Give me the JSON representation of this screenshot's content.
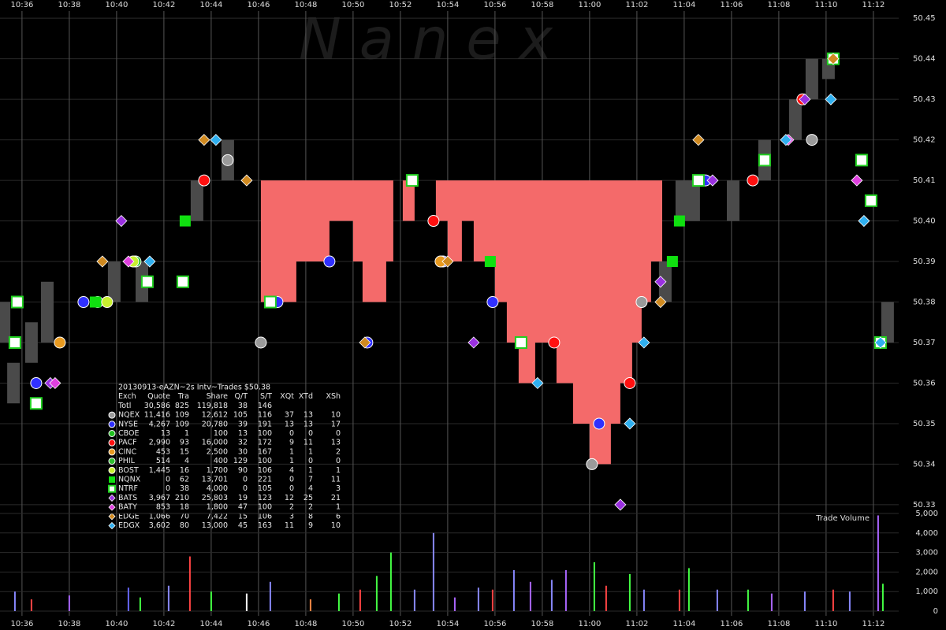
{
  "chart_data": [
    {
      "type": "scatter",
      "watermark": "N a n e x",
      "legend_table": {
        "title": "20130913-eAZN~2s Intv~Trades $50.38",
        "columns": [
          "Exch",
          "Quote",
          "Tra",
          "Share",
          "Q/T",
          "S/T",
          "XQt",
          "XTd",
          "XSh"
        ],
        "total": {
          "label": "Totl",
          "stats": [
            "30,586",
            "825",
            "119,818",
            "38",
            "146"
          ]
        }
      },
      "xlim": [
        635.07,
        673.07
      ],
      "xticks": [
        {
          "value": 636,
          "label": "10:36"
        },
        {
          "value": 638,
          "label": "10:38"
        },
        {
          "value": 640,
          "label": "10:40"
        },
        {
          "value": 642,
          "label": "10:42"
        },
        {
          "value": 644,
          "label": "10:44"
        },
        {
          "value": 646,
          "label": "10:46"
        },
        {
          "value": 648,
          "label": "10:48"
        },
        {
          "value": 650,
          "label": "10:50"
        },
        {
          "value": 652,
          "label": "10:52"
        },
        {
          "value": 654,
          "label": "10:54"
        },
        {
          "value": 656,
          "label": "10:56"
        },
        {
          "value": 658,
          "label": "10:58"
        },
        {
          "value": 660,
          "label": "11:00"
        },
        {
          "value": 662,
          "label": "11:02"
        },
        {
          "value": 664,
          "label": "11:04"
        },
        {
          "value": 666,
          "label": "11:06"
        },
        {
          "value": 668,
          "label": "11:08"
        },
        {
          "value": 670,
          "label": "11:10"
        },
        {
          "value": 672,
          "label": "11:12"
        }
      ],
      "ylim": [
        50.3294,
        50.4545
      ],
      "yticks": [
        50.33,
        50.34,
        50.35,
        50.36,
        50.37,
        50.38,
        50.39,
        {
          "value": 50.4,
          "label": "50.40"
        },
        50.41,
        50.42,
        50.43,
        50.44,
        50.45
      ],
      "grid": true,
      "spread": {
        "color": "#f46a6a",
        "base": 50.41,
        "x": [
          646.1,
          647.6,
          649.0,
          650.0,
          650.4,
          651.4,
          651.7,
          652.1,
          652.6,
          653.5,
          654.0,
          654.6,
          655.1,
          656.0,
          656.5,
          657.0,
          657.7,
          658.6,
          659.3,
          660.0,
          660.9,
          661.3,
          661.8,
          662.2,
          662.6,
          663.07
        ],
        "values": [
          50.38,
          50.39,
          50.4,
          50.39,
          50.38,
          50.39,
          50.41,
          50.4,
          50.41,
          50.4,
          50.39,
          50.4,
          50.39,
          50.38,
          50.37,
          50.36,
          50.37,
          50.36,
          50.35,
          50.34,
          50.35,
          50.36,
          50.37,
          50.38,
          50.39,
          50.41
        ]
      },
      "price_bars": {
        "color": "#4a4a4a",
        "x": [
          635.24,
          635.64,
          636.4,
          637.07,
          639.9,
          641.07,
          643.4,
          644.7,
          663.2,
          663.9,
          664.4,
          666.07,
          667.4,
          668.7,
          669.4,
          670.1,
          672.6
        ],
        "lows": [
          50.37,
          50.355,
          50.365,
          50.37,
          50.38,
          50.38,
          50.4,
          50.41,
          50.38,
          50.4,
          50.4,
          50.4,
          50.41,
          50.42,
          50.43,
          50.435,
          50.37
        ],
        "highs": [
          50.38,
          50.365,
          50.375,
          50.385,
          50.39,
          50.39,
          50.41,
          50.42,
          50.39,
          50.41,
          50.41,
          50.41,
          50.42,
          50.43,
          50.44,
          50.44,
          50.38
        ]
      },
      "series": [
        {
          "name": "NQEX",
          "color": "#9a9a9a",
          "shape": "circle",
          "stats": [
            "11,416",
            "109",
            "12,612",
            "105",
            "116",
            "37",
            "13",
            "10"
          ],
          "x": [
            644.7,
            662.2,
            646.1,
            669.4,
            660.1
          ],
          "values": [
            50.415,
            50.38,
            50.37,
            50.42,
            50.34
          ]
        },
        {
          "name": "NYSE",
          "color": "#3030ff",
          "shape": "circle",
          "stats": [
            "4,267",
            "109",
            "20,780",
            "39",
            "191",
            "13",
            "13",
            "17"
          ],
          "x": [
            636.6,
            638.6,
            646.8,
            649.0,
            655.9,
            660.4,
            650.6,
            653.8,
            664.9
          ],
          "values": [
            50.36,
            50.38,
            50.38,
            50.39,
            50.38,
            50.35,
            50.37,
            50.39,
            50.41
          ]
        },
        {
          "name": "CBOE",
          "color": "#20c020",
          "shape": "circle",
          "stats": [
            "13",
            "1",
            "100",
            "13",
            "100",
            "0",
            "0",
            "0"
          ],
          "x": [
            640.8
          ],
          "values": [
            50.39
          ]
        },
        {
          "name": "PACF",
          "color": "#ff1010",
          "shape": "circle",
          "stats": [
            "2,990",
            "93",
            "16,000",
            "32",
            "172",
            "9",
            "11",
            "13"
          ],
          "x": [
            643.7,
            653.4,
            658.5,
            661.7,
            666.9,
            669.0
          ],
          "values": [
            50.41,
            50.4,
            50.37,
            50.36,
            50.41,
            50.43
          ]
        },
        {
          "name": "CINC",
          "color": "#e89a20",
          "shape": "circle",
          "stats": [
            "453",
            "15",
            "2,500",
            "30",
            "167",
            "1",
            "1",
            "2"
          ],
          "x": [
            637.6,
            653.7
          ],
          "values": [
            50.37,
            50.39
          ]
        },
        {
          "name": "PHIL",
          "color": "#30c030",
          "shape": "circle",
          "stats": [
            "514",
            "4",
            "400",
            "129",
            "100",
            "1",
            "0",
            "0"
          ],
          "x": [
            639.2
          ],
          "values": [
            50.38
          ]
        },
        {
          "name": "BOST",
          "color": "#c8f030",
          "shape": "circle",
          "stats": [
            "1,445",
            "16",
            "1,700",
            "90",
            "106",
            "4",
            "1",
            "1"
          ],
          "x": [
            639.6,
            640.7
          ],
          "values": [
            50.38,
            50.39
          ]
        },
        {
          "name": "NQNX",
          "color": "#10e010",
          "shape": "square",
          "stats": [
            "0",
            "62",
            "13,701",
            "0",
            "221",
            "0",
            "7",
            "11"
          ],
          "x": [
            642.9,
            655.8,
            663.8,
            663.5,
            639.1
          ],
          "values": [
            50.4,
            50.39,
            50.4,
            50.39,
            50.38
          ]
        },
        {
          "name": "NTRF",
          "color": "#20d020",
          "shape": "square-outline",
          "stats": [
            "0",
            "38",
            "4,000",
            "0",
            "105",
            "0",
            "4",
            "3"
          ],
          "x": [
            635.8,
            635.7,
            636.6,
            652.5,
            641.3,
            642.8,
            646.5,
            657.1,
            664.6,
            667.4,
            670.3,
            671.5,
            671.9,
            672.3
          ],
          "values": [
            50.38,
            50.37,
            50.355,
            50.41,
            50.385,
            50.385,
            50.38,
            50.37,
            50.41,
            50.415,
            50.44,
            50.415,
            50.405,
            50.37
          ]
        },
        {
          "name": "BATS",
          "color": "#9a30e0",
          "shape": "diamond",
          "stats": [
            "3,967",
            "210",
            "25,803",
            "19",
            "123",
            "12",
            "25",
            "21"
          ],
          "x": [
            637.2,
            640.2,
            655.1,
            661.3,
            663.0,
            665.2,
            669.1
          ],
          "values": [
            50.36,
            50.4,
            50.37,
            50.33,
            50.385,
            50.41,
            50.43
          ]
        },
        {
          "name": "BATY",
          "color": "#e040e0",
          "shape": "diamond",
          "stats": [
            "853",
            "18",
            "1,800",
            "47",
            "100",
            "2",
            "2",
            "1"
          ],
          "x": [
            637.4,
            640.5,
            668.4,
            671.3
          ],
          "values": [
            50.36,
            50.39,
            50.42,
            50.41
          ]
        },
        {
          "name": "EDGE",
          "color": "#d08a20",
          "shape": "diamond",
          "stats": [
            "1,066",
            "70",
            "7,422",
            "15",
            "106",
            "3",
            "8",
            "6"
          ],
          "x": [
            639.4,
            643.7,
            645.5,
            650.5,
            654.0,
            663.0,
            664.6,
            670.3
          ],
          "values": [
            50.39,
            50.42,
            50.41,
            50.37,
            50.39,
            50.38,
            50.42,
            50.44
          ]
        },
        {
          "name": "EDGX",
          "color": "#30b0f0",
          "shape": "diamond",
          "stats": [
            "3,602",
            "80",
            "13,000",
            "45",
            "163",
            "11",
            "9",
            "10"
          ],
          "x": [
            641.4,
            644.2,
            657.8,
            661.7,
            662.3,
            668.3,
            670.2,
            671.6,
            672.3
          ],
          "values": [
            50.39,
            50.42,
            50.36,
            50.35,
            50.37,
            50.42,
            50.43,
            50.4,
            50.37
          ]
        }
      ]
    },
    {
      "type": "bar",
      "title": "Trade Volume",
      "ylim": [
        0,
        5000
      ],
      "yticks": [
        0,
        {
          "value": 1000,
          "label": "1,000"
        },
        {
          "value": 2000,
          "label": "2,000"
        },
        {
          "value": 3000,
          "label": "3,000"
        },
        {
          "value": 4000,
          "label": "4,000"
        },
        {
          "value": 5000,
          "label": "5,000"
        }
      ],
      "x": [
        635.7,
        636.4,
        638.0,
        640.5,
        641.0,
        642.2,
        643.1,
        644.0,
        645.5,
        646.5,
        648.2,
        649.4,
        650.3,
        651.0,
        651.6,
        652.6,
        653.4,
        654.3,
        655.3,
        655.9,
        656.8,
        657.5,
        658.4,
        659.0,
        660.2,
        660.7,
        661.7,
        662.3,
        663.8,
        664.2,
        665.4,
        666.7,
        667.7,
        669.1,
        670.3,
        671.0,
        672.2,
        672.4
      ],
      "values": [
        1000,
        600,
        800,
        1200,
        700,
        1300,
        2800,
        1000,
        900,
        1500,
        600,
        900,
        1100,
        1800,
        3000,
        1100,
        4000,
        700,
        1200,
        1100,
        2100,
        1500,
        1600,
        2100,
        2500,
        1300,
        1900,
        1100,
        1100,
        2200,
        1100,
        1100,
        900,
        1000,
        1100,
        1000,
        4900,
        1400
      ],
      "colors": [
        "#8888ff",
        "#ff4444",
        "#aa66ff",
        "#6666ff",
        "#44ff44",
        "#8888ff",
        "#ff4444",
        "#44ff44",
        "#ffffff",
        "#8888ff",
        "#ff8844",
        "#44ff44",
        "#ff4444",
        "#44ff44",
        "#44ff44",
        "#8888ff",
        "#8888ff",
        "#aa66ff",
        "#8888ff",
        "#ff4444",
        "#8888ff",
        "#aa66ff",
        "#8888ff",
        "#aa66ff",
        "#44ff44",
        "#ff4444",
        "#44ff44",
        "#8888ff",
        "#ff4444",
        "#44ff44",
        "#8888ff",
        "#44ff44",
        "#aa66ff",
        "#8888ff",
        "#ff4444",
        "#8888ff",
        "#aa66ff",
        "#44ff44"
      ]
    }
  ]
}
